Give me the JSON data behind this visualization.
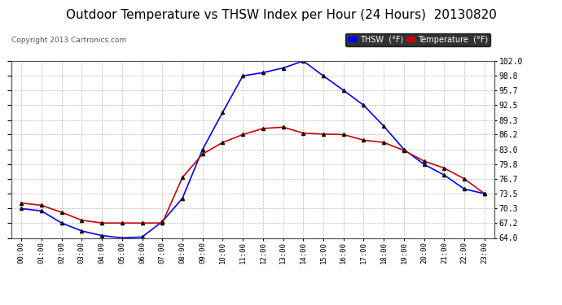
{
  "title": "Outdoor Temperature vs THSW Index per Hour (24 Hours)  20130820",
  "copyright": "Copyright 2013 Cartronics.com",
  "hours": [
    "00:00",
    "01:00",
    "02:00",
    "03:00",
    "04:00",
    "05:00",
    "06:00",
    "07:00",
    "08:00",
    "09:00",
    "10:00",
    "11:00",
    "12:00",
    "13:00",
    "14:00",
    "15:00",
    "16:00",
    "17:00",
    "18:00",
    "19:00",
    "20:00",
    "21:00",
    "22:00",
    "23:00"
  ],
  "thsw": [
    70.3,
    69.8,
    67.2,
    65.5,
    64.5,
    64.0,
    64.2,
    67.5,
    72.5,
    83.0,
    91.0,
    98.8,
    99.5,
    100.5,
    102.0,
    98.8,
    95.7,
    92.5,
    88.0,
    83.0,
    79.8,
    77.5,
    74.5,
    73.5
  ],
  "temp": [
    71.5,
    71.0,
    69.5,
    67.8,
    67.2,
    67.2,
    67.2,
    67.2,
    77.0,
    82.0,
    84.5,
    86.2,
    87.5,
    87.8,
    86.5,
    86.3,
    86.2,
    85.0,
    84.5,
    82.8,
    80.5,
    79.0,
    76.7,
    73.5
  ],
  "thsw_color": "#0000ff",
  "temp_color": "#cc0000",
  "marker_color": "#111111",
  "bg_color": "#ffffff",
  "grid_color": "#bbbbbb",
  "ylim_min": 64.0,
  "ylim_max": 102.0,
  "yticks": [
    64.0,
    67.2,
    70.3,
    73.5,
    76.7,
    79.8,
    83.0,
    86.2,
    89.3,
    92.5,
    95.7,
    98.8,
    102.0
  ],
  "title_fontsize": 11,
  "legend_thsw_label": "THSW  (°F)",
  "legend_temp_label": "Temperature  (°F)"
}
